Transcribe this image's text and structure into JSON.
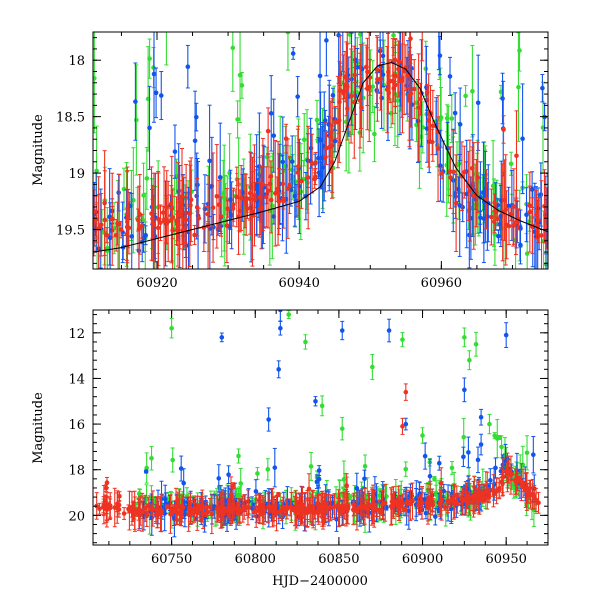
{
  "chart_data": [
    {
      "type": "scatter",
      "panel": "top",
      "xlabel": "",
      "ylabel": "Magnitude",
      "xlim": [
        60911,
        60975
      ],
      "ylim": [
        19.85,
        17.75
      ],
      "x_ticks": [
        60920,
        60940,
        60960
      ],
      "y_ticks": [
        18,
        18.5,
        19,
        19.5
      ],
      "colors": {
        "green": "#33dd33",
        "blue": "#1155ee",
        "red": "#ee3322",
        "model": "#000000"
      },
      "model_curve": {
        "name": "model",
        "x": [
          60911,
          60915,
          60920,
          60925,
          60930,
          60935,
          60940,
          60943,
          60945,
          60947,
          60949,
          60951,
          60953,
          60955,
          60957,
          60959,
          60962,
          60965,
          60968,
          60971,
          60975
        ],
        "y": [
          19.7,
          19.66,
          19.58,
          19.5,
          19.42,
          19.34,
          19.25,
          19.12,
          18.9,
          18.55,
          18.2,
          18.05,
          18.02,
          18.08,
          18.25,
          18.55,
          18.95,
          19.2,
          19.33,
          19.42,
          19.52
        ]
      },
      "series": [
        {
          "name": "green",
          "trend": [
            [
              60911,
              19.4
            ],
            [
              60920,
              19.35
            ],
            [
              60930,
              19.25
            ],
            [
              60940,
              19.05
            ],
            [
              60945,
              18.6
            ],
            [
              60948,
              18.25
            ],
            [
              60950,
              18.35
            ],
            [
              60953,
              18.3
            ],
            [
              60956,
              18.4
            ],
            [
              60958,
              18.6
            ],
            [
              60961,
              19.0
            ],
            [
              60965,
              19.3
            ],
            [
              60970,
              19.45
            ]
          ],
          "spread": 0.55,
          "outlier_rate": 0.25,
          "count": 180
        },
        {
          "name": "blue",
          "trend": [
            [
              60911,
              19.45
            ],
            [
              60920,
              19.4
            ],
            [
              60930,
              19.3
            ],
            [
              60940,
              19.05
            ],
            [
              60944,
              18.8
            ],
            [
              60946,
              18.2
            ],
            [
              60950,
              18.15
            ],
            [
              60954,
              18.1
            ],
            [
              60957,
              18.3
            ],
            [
              60960,
              18.8
            ],
            [
              60963,
              19.2
            ],
            [
              60966,
              19.3
            ],
            [
              60970,
              19.4
            ]
          ],
          "spread": 0.45,
          "outlier_rate": 0.18,
          "count": 220
        },
        {
          "name": "red",
          "trend": [
            [
              60911,
              19.5
            ],
            [
              60920,
              19.45
            ],
            [
              60930,
              19.3
            ],
            [
              60940,
              19.1
            ],
            [
              60944,
              18.9
            ],
            [
              60946,
              18.3
            ],
            [
              60950,
              18.2
            ],
            [
              60954,
              18.15
            ],
            [
              60958,
              18.4
            ],
            [
              60961,
              19.0
            ],
            [
              60965,
              19.25
            ],
            [
              60970,
              19.4
            ]
          ],
          "spread": 0.28,
          "outlier_rate": 0.05,
          "count": 220
        }
      ]
    },
    {
      "type": "scatter",
      "panel": "bottom",
      "xlabel": "HJD−2400000",
      "ylabel": "Magnitude",
      "xlim": [
        60703,
        60975
      ],
      "ylim": [
        21.3,
        11.0
      ],
      "x_ticks": [
        60750,
        60800,
        60850,
        60900,
        60950
      ],
      "y_ticks": [
        12,
        14,
        16,
        18,
        20
      ],
      "colors": {
        "green": "#33dd33",
        "blue": "#1155ee",
        "red": "#ee3322"
      },
      "series": [
        {
          "name": "green",
          "x_range": [
            60728,
            60970
          ],
          "base": [
            [
              60728,
              19.6
            ],
            [
              60850,
              19.5
            ],
            [
              60920,
              19.3
            ],
            [
              60945,
              18.9
            ],
            [
              60950,
              18.0
            ],
            [
              60960,
              19.0
            ],
            [
              60970,
              19.6
            ]
          ],
          "spread": 0.8,
          "outlier_rate": 0.12,
          "count": 240,
          "outliers": [
            [
              60750,
              11.8
            ],
            [
              60790,
              17.4
            ],
            [
              60820,
              11.2
            ],
            [
              60830,
              12.4
            ],
            [
              60840,
              15.2
            ],
            [
              60852,
              16.2
            ],
            [
              60870,
              13.5
            ],
            [
              60888,
              12.3
            ],
            [
              60900,
              16.5
            ],
            [
              60925,
              12.2
            ],
            [
              60928,
              13.2
            ],
            [
              60932,
              12.5
            ],
            [
              60940,
              16.0
            ],
            [
              60738,
              17.5
            ]
          ]
        },
        {
          "name": "blue",
          "x_range": [
            60728,
            60970
          ],
          "base": [
            [
              60728,
              19.8
            ],
            [
              60850,
              19.6
            ],
            [
              60920,
              19.4
            ],
            [
              60945,
              18.6
            ],
            [
              60950,
              17.5
            ],
            [
              60958,
              18.3
            ],
            [
              60970,
              19.5
            ]
          ],
          "spread": 0.7,
          "outlier_rate": 0.1,
          "count": 260,
          "outliers": [
            [
              60780,
              12.2
            ],
            [
              60815,
              11.0
            ],
            [
              60814,
              13.6
            ],
            [
              60815,
              11.8
            ],
            [
              60852,
              11.9
            ],
            [
              60880,
              11.9
            ],
            [
              60890,
              16.0
            ],
            [
              60925,
              14.5
            ],
            [
              60935,
              15.7
            ],
            [
              60950,
              12.1
            ],
            [
              60808,
              15.8
            ],
            [
              60836,
              15.0
            ]
          ]
        },
        {
          "name": "red",
          "x_range": [
            60705,
            60970
          ],
          "base": [
            [
              60705,
              19.6
            ],
            [
              60730,
              19.8
            ],
            [
              60850,
              19.7
            ],
            [
              60920,
              19.4
            ],
            [
              60945,
              19.0
            ],
            [
              60950,
              18.0
            ],
            [
              60958,
              18.6
            ],
            [
              60970,
              19.4
            ]
          ],
          "spread": 0.35,
          "outlier_rate": 0.03,
          "count": 380,
          "outliers": [
            [
              60890,
              14.6
            ],
            [
              60888,
              16.1
            ]
          ]
        }
      ]
    }
  ]
}
